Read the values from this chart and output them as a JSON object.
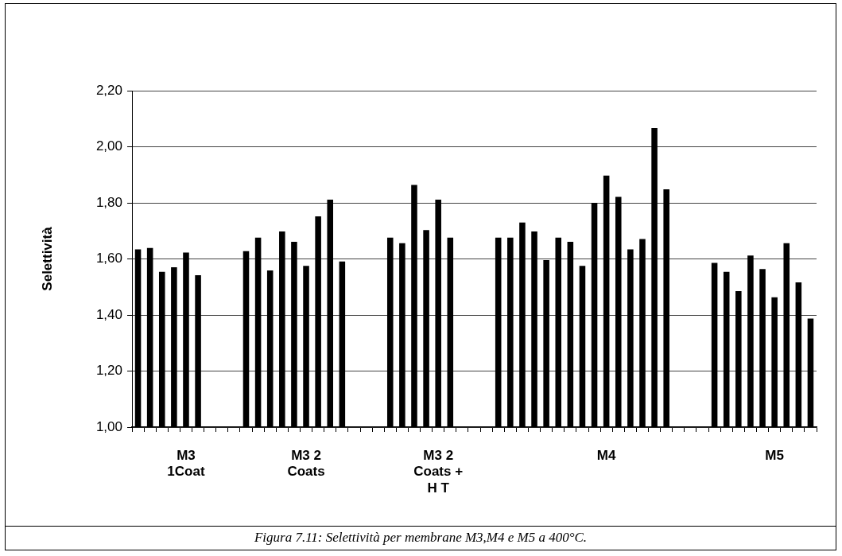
{
  "chart_data": {
    "type": "bar",
    "ylabel": "Selettività",
    "categories": [
      null,
      null,
      null,
      null,
      "M3\n1Coat",
      null,
      null,
      null,
      null,
      null,
      null,
      null,
      null,
      null,
      "M3 2\nCoats",
      null,
      null,
      null,
      null,
      null,
      null,
      null,
      null,
      null,
      null,
      "M3 2\nCoats +\nH T",
      null,
      null,
      null,
      null,
      null,
      null,
      null,
      null,
      null,
      null,
      null,
      null,
      null,
      "M4",
      null,
      null,
      null,
      null,
      null,
      null,
      null,
      null,
      null,
      null,
      null,
      null,
      null,
      "M5",
      null,
      null,
      null
    ],
    "values": [
      1.634,
      1.639,
      1.554,
      1.57,
      1.623,
      1.542,
      null,
      null,
      null,
      1.628,
      1.676,
      1.559,
      1.698,
      1.661,
      1.575,
      1.752,
      1.811,
      1.591,
      null,
      null,
      null,
      1.676,
      1.656,
      1.864,
      1.703,
      1.811,
      1.676,
      null,
      null,
      null,
      1.676,
      1.676,
      1.73,
      1.698,
      1.596,
      1.676,
      1.661,
      1.575,
      1.8,
      1.897,
      1.821,
      1.634,
      1.671,
      2.067,
      1.848,
      null,
      null,
      null,
      1.586,
      1.554,
      1.485,
      1.612,
      1.564,
      1.463,
      1.656,
      1.516,
      1.387
    ],
    "color": "#000000",
    "ylim": [
      1,
      2.2
    ],
    "yticks": [
      {
        "value": 1,
        "label": "1,00"
      },
      {
        "value": 1.2,
        "label": "1,20"
      },
      {
        "value": 1.4,
        "label": "1,40"
      },
      {
        "value": 1.6,
        "label": "1,60"
      },
      {
        "value": 1.8,
        "label": "1,80"
      },
      {
        "value": 2,
        "label": "2,00"
      },
      {
        "value": 2.2,
        "label": "2,20"
      }
    ],
    "grid": "y",
    "annotations": [
      "Figura 7.11: Selettività per membrane M3,M4 e M5 a 400°C."
    ]
  }
}
